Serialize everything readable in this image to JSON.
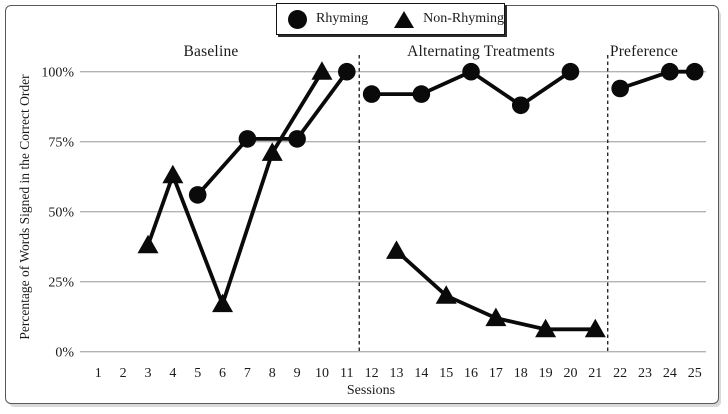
{
  "chart_data": {
    "type": "line",
    "title": "",
    "xlabel": "Sessions",
    "ylabel": "Percentage of Words Signed in the Correct Order",
    "xlim": [
      1,
      25
    ],
    "ylim": [
      0,
      100
    ],
    "grid": "horizontal-only",
    "legend_position": "top-center",
    "line_color": "#0a0a0a",
    "gridline_color": "#b3b3b3",
    "divider_style": "dashed-vertical",
    "x_ticks": [
      1,
      2,
      3,
      4,
      5,
      6,
      7,
      8,
      9,
      10,
      11,
      12,
      13,
      14,
      15,
      16,
      17,
      18,
      19,
      20,
      21,
      22,
      23,
      24,
      25
    ],
    "y_ticks": [
      {
        "value": 0,
        "label": "0%"
      },
      {
        "value": 25,
        "label": "25%"
      },
      {
        "value": 50,
        "label": "50%"
      },
      {
        "value": 75,
        "label": "75%"
      },
      {
        "value": 100,
        "label": "100%"
      }
    ],
    "phases": [
      {
        "label": "Baseline",
        "sessions": [
          1,
          11
        ]
      },
      {
        "label": "Alternating Treatments",
        "sessions": [
          12,
          21
        ]
      },
      {
        "label": "Preference",
        "sessions": [
          22,
          25
        ]
      }
    ],
    "phase_divider_x": [
      11.5,
      21.5
    ],
    "series": [
      {
        "name": "Rhyming",
        "marker": "circle",
        "segments": [
          [
            [
              5,
              56
            ],
            [
              7,
              76
            ],
            [
              9,
              76
            ],
            [
              11,
              100
            ]
          ],
          [
            [
              12,
              92
            ],
            [
              14,
              92
            ],
            [
              16,
              100
            ],
            [
              18,
              88
            ],
            [
              20,
              100
            ]
          ],
          [
            [
              22,
              94
            ],
            [
              24,
              100
            ],
            [
              25,
              100
            ]
          ]
        ]
      },
      {
        "name": "Non-Rhyming",
        "marker": "triangle",
        "segments": [
          [
            [
              3,
              38
            ],
            [
              4,
              63
            ],
            [
              6,
              17
            ],
            [
              8,
              71
            ],
            [
              10,
              100
            ]
          ],
          [
            [
              13,
              36
            ],
            [
              15,
              20
            ],
            [
              17,
              12
            ],
            [
              19,
              8
            ],
            [
              21,
              8
            ]
          ]
        ]
      }
    ]
  }
}
